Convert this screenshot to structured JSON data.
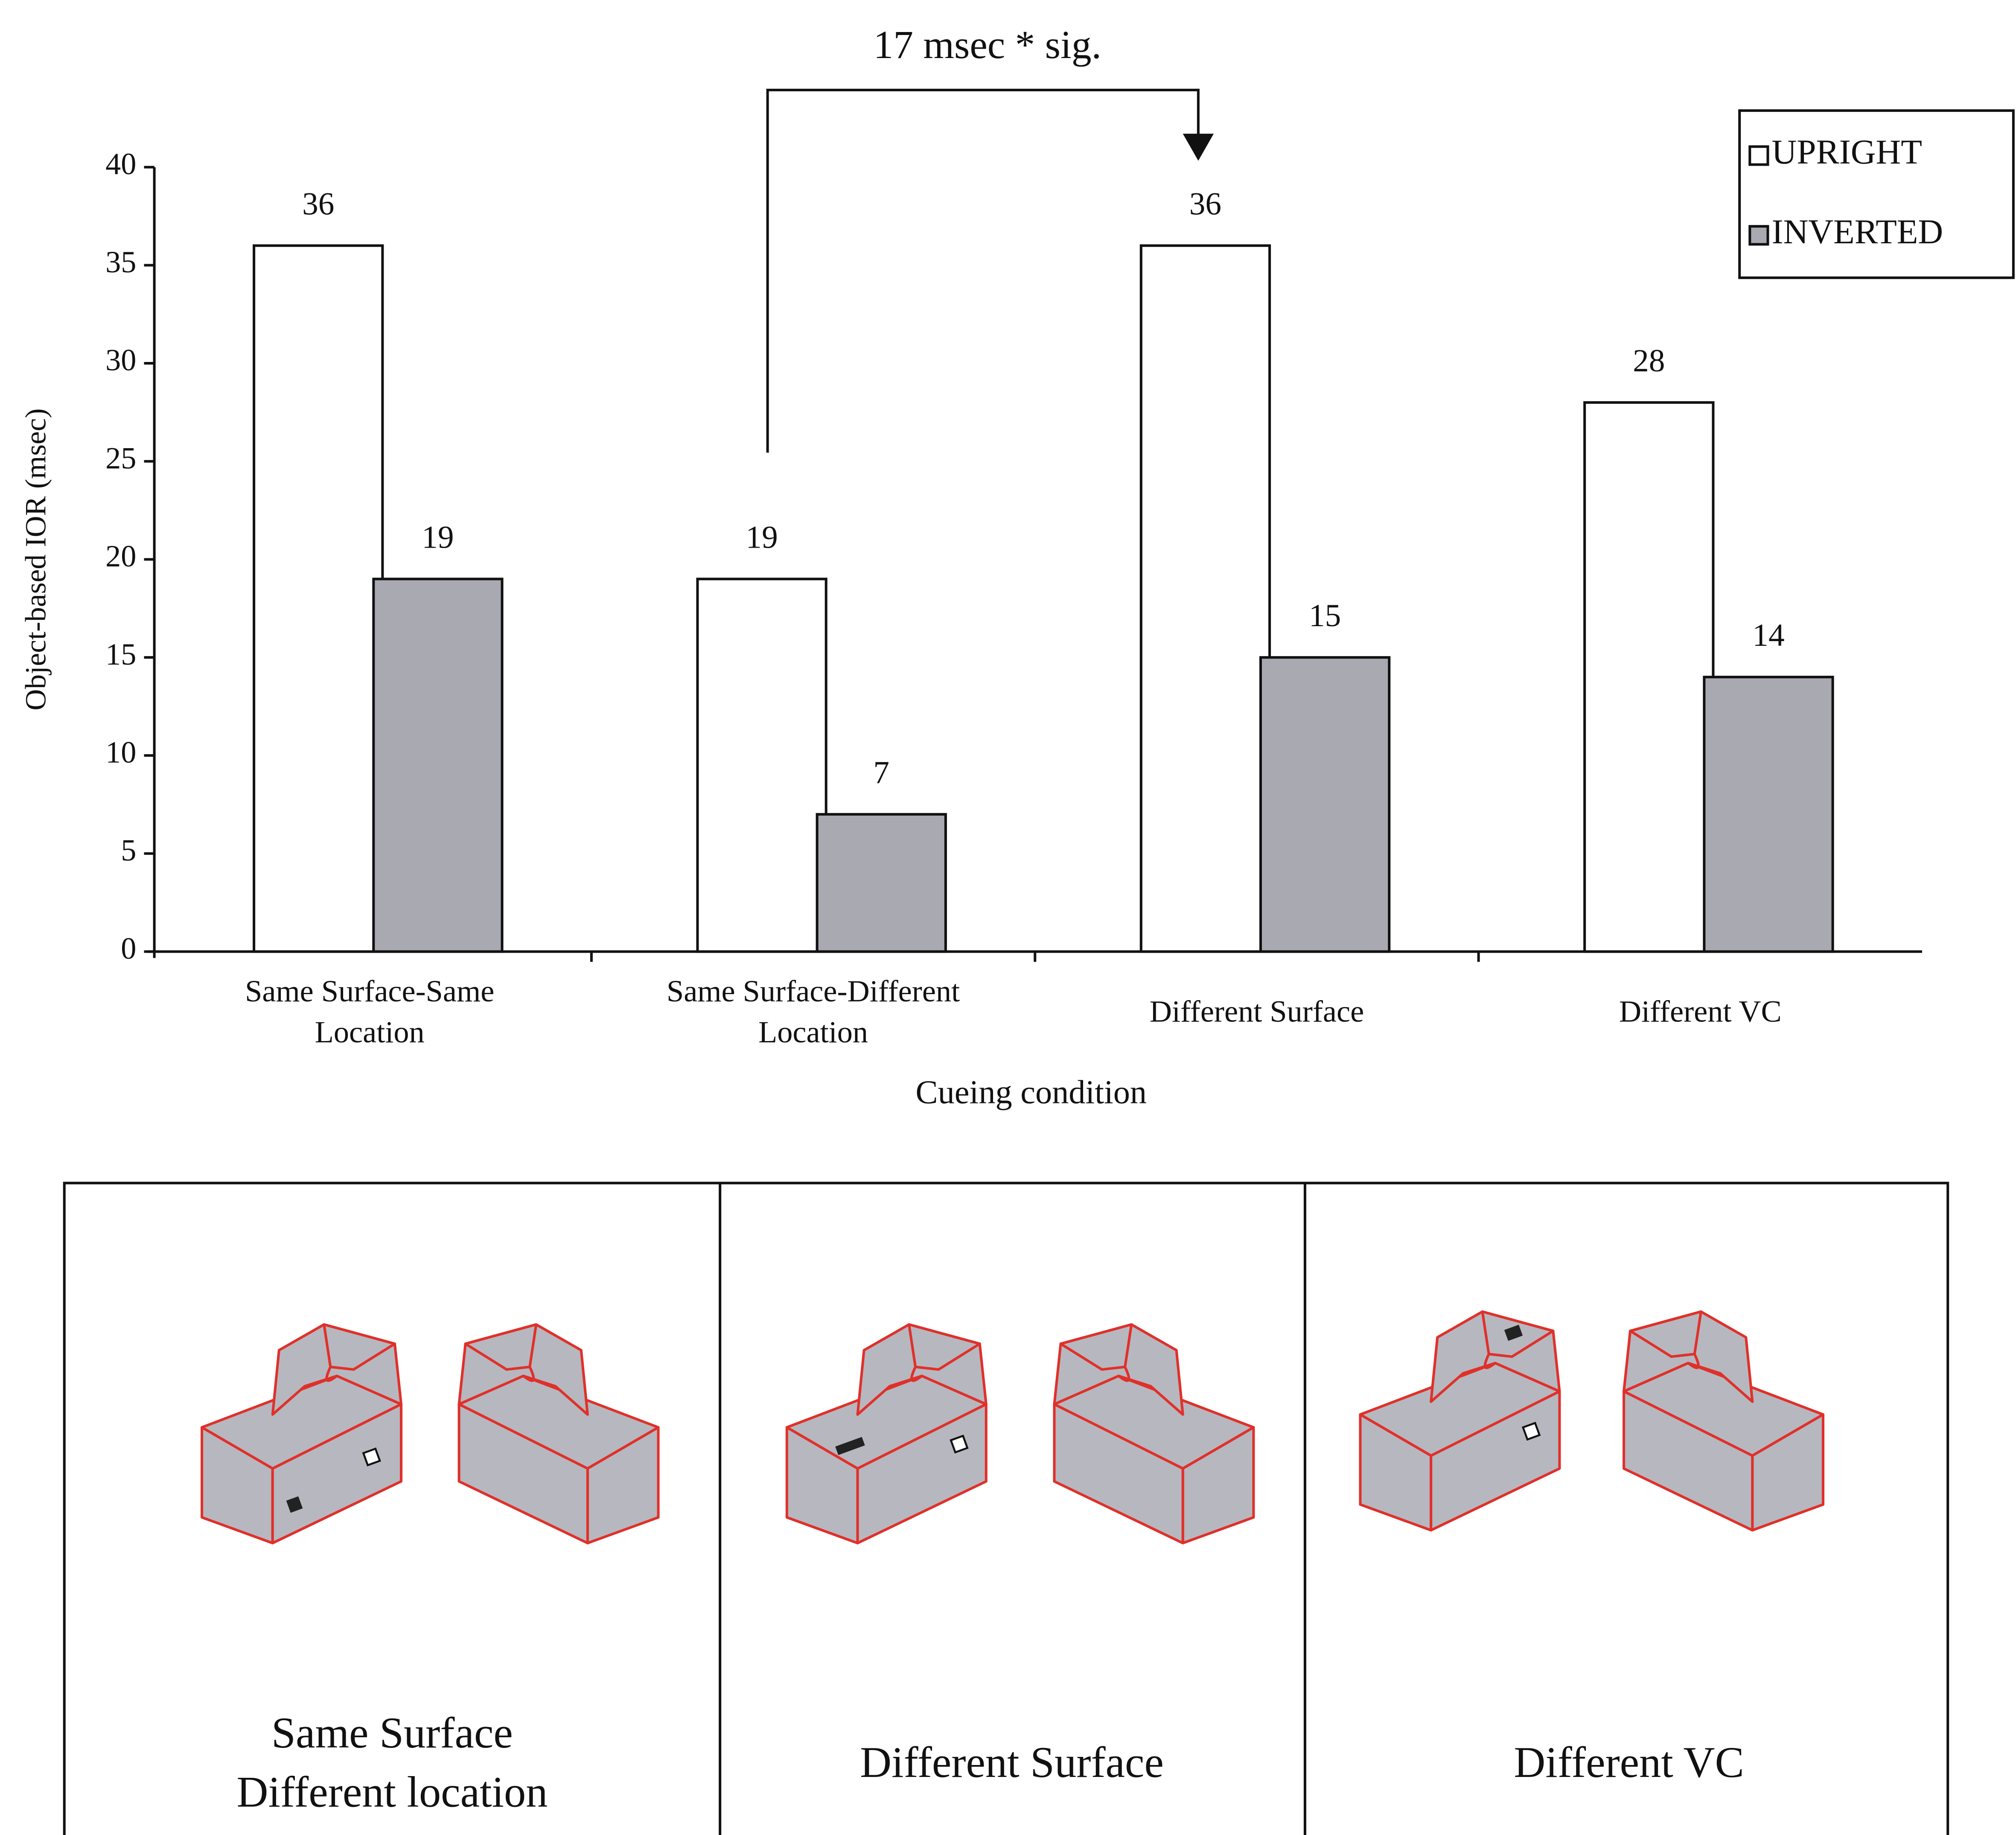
{
  "chart_data": {
    "type": "bar",
    "annotation": "17 msec * sig.",
    "y_label": "Object-based IOR (msec)",
    "x_label": "Cueing condition",
    "categories": [
      "Same Surface-Same\nLocation",
      "Same Surface-Different\nLocation",
      "Different Surface",
      "Different VC"
    ],
    "series": [
      {
        "name": "UPRIGHT",
        "color": "#ffffff",
        "values": [
          36,
          19,
          36,
          28
        ]
      },
      {
        "name": "INVERTED",
        "color": "#a9a9b2",
        "values": [
          19,
          7,
          15,
          14
        ]
      }
    ],
    "ylim": [
      0,
      40
    ],
    "yticks": [
      0,
      5,
      10,
      15,
      20,
      25,
      30,
      35,
      40
    ],
    "legend": "upper-right"
  },
  "panels": [
    {
      "label": "Same Surface\nDifferent location"
    },
    {
      "label": "Different Surface"
    },
    {
      "label": "Different VC"
    }
  ]
}
